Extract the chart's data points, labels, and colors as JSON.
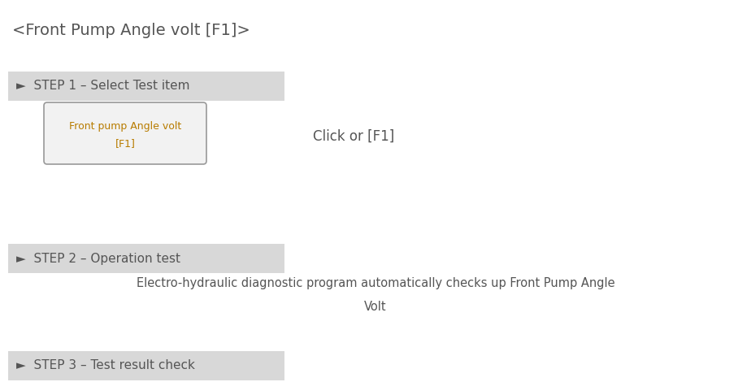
{
  "title": "<Front Pump Angle volt [F1]>",
  "bg_color": "#ffffff",
  "step_bg_color": "#d8d8d8",
  "step_fontsize": 11,
  "step_color": "#555555",
  "step1_label": "►  STEP 1 – Select Test item",
  "step2_label": "►  STEP 2 – Operation test",
  "step3_label": "►  STEP 3 – Test result check",
  "button_label_line1": "Front pump Angle volt",
  "button_label_line2": "[F1]",
  "button_text_color": "#b87c00",
  "button_fontsize": 9,
  "click_label": "Click or [F1]",
  "click_fontsize": 12,
  "click_color": "#555555",
  "desc_line1": "Electro-hydraulic diagnostic program automatically checks up Front Pump Angle",
  "desc_line2": "Volt",
  "desc_fontsize": 10.5,
  "desc_color": "#555555",
  "title_fontsize": 14,
  "title_color": "#555555"
}
